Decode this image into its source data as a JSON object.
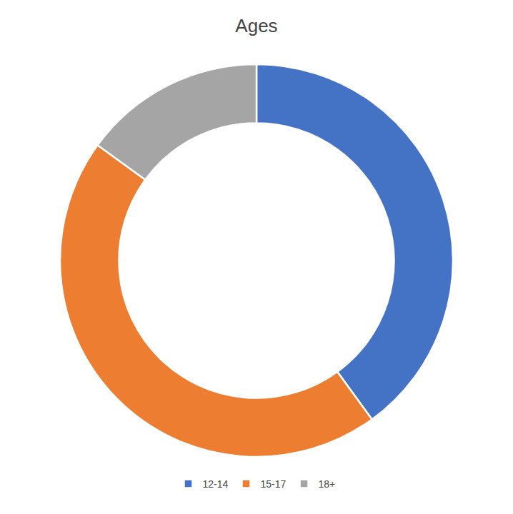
{
  "chart_data": {
    "type": "donut",
    "title": "Ages",
    "categories": [
      "12-14",
      "15-17",
      "18+"
    ],
    "values": [
      40,
      45,
      15
    ],
    "colors": [
      "#4472C4",
      "#ED7D31",
      "#A5A5A5"
    ],
    "legend": "bottom"
  }
}
